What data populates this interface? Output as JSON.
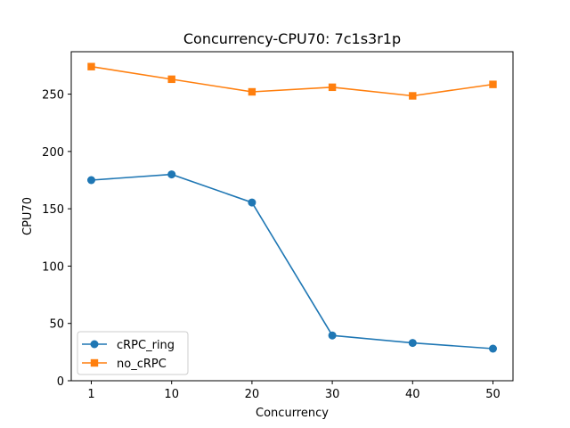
{
  "chart_data": {
    "type": "line",
    "title": "Concurrency-CPU70: 7c1s3r1p",
    "xlabel": "Concurrency",
    "ylabel": "CPU70",
    "categories": [
      "1",
      "10",
      "20",
      "30",
      "40",
      "50"
    ],
    "ylim": [
      0,
      287
    ],
    "yticks": [
      0,
      50,
      100,
      150,
      200,
      250
    ],
    "grid": false,
    "legend_position": "lower-left",
    "series": [
      {
        "name": "cRPC_ring",
        "color": "#1f77b4",
        "marker": "circle",
        "values": [
          175,
          180,
          155.5,
          39.5,
          33,
          28
        ]
      },
      {
        "name": "no_cRPC",
        "color": "#ff7f0e",
        "marker": "square",
        "values": [
          274,
          263,
          252,
          256,
          248.5,
          258.5
        ]
      }
    ]
  }
}
